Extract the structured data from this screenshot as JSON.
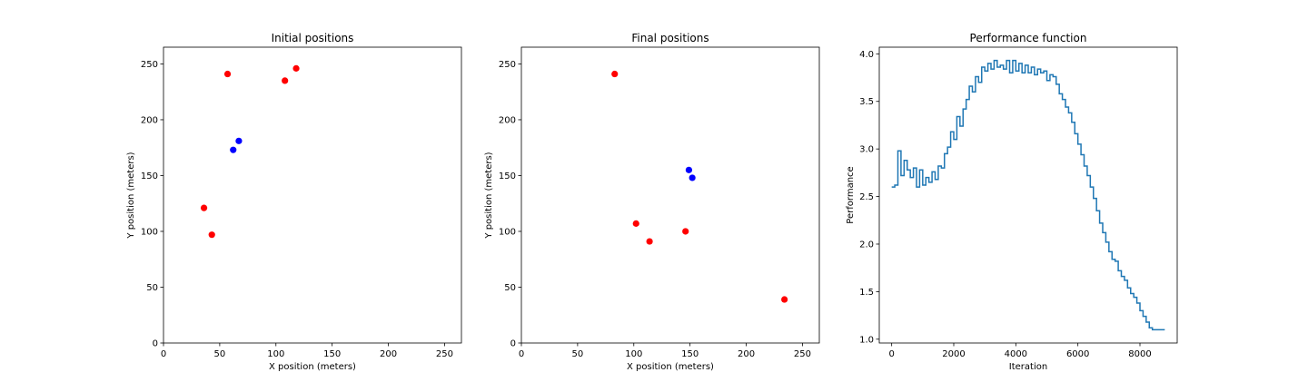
{
  "chart_data": [
    {
      "type": "scatter",
      "title": "Initial positions",
      "xlabel": "X position (meters)",
      "ylabel": "Y position (meters)",
      "xlim": [
        0,
        265
      ],
      "ylim": [
        0,
        265
      ],
      "xticks": [
        0,
        50,
        100,
        150,
        200,
        250
      ],
      "yticks": [
        0,
        50,
        100,
        150,
        200,
        250
      ],
      "grid": false,
      "series": [
        {
          "color": "#ff0000",
          "points": [
            [
              57,
              241
            ],
            [
              108,
              235
            ],
            [
              118,
              246
            ],
            [
              36,
              121
            ],
            [
              43,
              97
            ]
          ]
        },
        {
          "color": "#0000ff",
          "points": [
            [
              67,
              181
            ],
            [
              62,
              173
            ]
          ]
        }
      ]
    },
    {
      "type": "scatter",
      "title": "Final positions",
      "xlabel": "X position (meters)",
      "ylabel": "Y position (meters)",
      "xlim": [
        0,
        265
      ],
      "ylim": [
        0,
        265
      ],
      "xticks": [
        0,
        50,
        100,
        150,
        200,
        250
      ],
      "yticks": [
        0,
        50,
        100,
        150,
        200,
        250
      ],
      "grid": false,
      "series": [
        {
          "color": "#ff0000",
          "points": [
            [
              83,
              241
            ],
            [
              102,
              107
            ],
            [
              114,
              91
            ],
            [
              146,
              100
            ],
            [
              234,
              39
            ]
          ]
        },
        {
          "color": "#0000ff",
          "points": [
            [
              149,
              155
            ],
            [
              152,
              148
            ]
          ]
        }
      ]
    },
    {
      "type": "line",
      "style": "step",
      "title": "Performance function",
      "xlabel": "Iteration",
      "ylabel": "Performance",
      "xlim": [
        -400,
        9200
      ],
      "ylim": [
        0.96,
        4.07
      ],
      "xticks": [
        0,
        2000,
        4000,
        6000,
        8000
      ],
      "yticks": [
        1.0,
        1.5,
        2.0,
        2.5,
        3.0,
        3.5,
        4.0
      ],
      "ytick_labels": [
        "1.0",
        "1.5",
        "2.0",
        "2.5",
        "3.0",
        "3.5",
        "4.0"
      ],
      "grid": false,
      "color": "#1f77b4",
      "x": [
        0,
        100,
        200,
        300,
        400,
        500,
        600,
        700,
        800,
        900,
        1000,
        1100,
        1200,
        1300,
        1400,
        1500,
        1600,
        1700,
        1800,
        1900,
        2000,
        2100,
        2200,
        2300,
        2400,
        2500,
        2600,
        2700,
        2800,
        2900,
        3000,
        3100,
        3200,
        3300,
        3400,
        3500,
        3600,
        3700,
        3800,
        3900,
        4000,
        4100,
        4200,
        4300,
        4400,
        4500,
        4600,
        4700,
        4800,
        4900,
        5000,
        5100,
        5200,
        5300,
        5400,
        5500,
        5600,
        5700,
        5800,
        5900,
        6000,
        6100,
        6200,
        6300,
        6400,
        6500,
        6600,
        6700,
        6800,
        6900,
        7000,
        7100,
        7200,
        7300,
        7400,
        7500,
        7600,
        7700,
        7800,
        7900,
        8000,
        8100,
        8200,
        8300,
        8400,
        8500,
        8600,
        8700,
        8800
      ],
      "y": [
        2.6,
        2.62,
        2.98,
        2.72,
        2.88,
        2.78,
        2.7,
        2.8,
        2.6,
        2.78,
        2.62,
        2.7,
        2.65,
        2.76,
        2.68,
        2.82,
        2.8,
        2.95,
        3.02,
        3.18,
        3.1,
        3.34,
        3.24,
        3.42,
        3.52,
        3.66,
        3.6,
        3.76,
        3.7,
        3.86,
        3.82,
        3.9,
        3.84,
        3.93,
        3.86,
        3.88,
        3.84,
        3.93,
        3.8,
        3.93,
        3.82,
        3.9,
        3.8,
        3.88,
        3.8,
        3.86,
        3.78,
        3.84,
        3.8,
        3.82,
        3.72,
        3.78,
        3.76,
        3.68,
        3.58,
        3.52,
        3.44,
        3.38,
        3.28,
        3.16,
        3.05,
        2.94,
        2.82,
        2.72,
        2.6,
        2.48,
        2.35,
        2.22,
        2.12,
        2.02,
        1.92,
        1.84,
        1.82,
        1.72,
        1.66,
        1.62,
        1.54,
        1.48,
        1.44,
        1.38,
        1.3,
        1.24,
        1.18,
        1.12,
        1.1,
        1.1,
        1.1,
        1.1,
        1.1
      ]
    }
  ]
}
